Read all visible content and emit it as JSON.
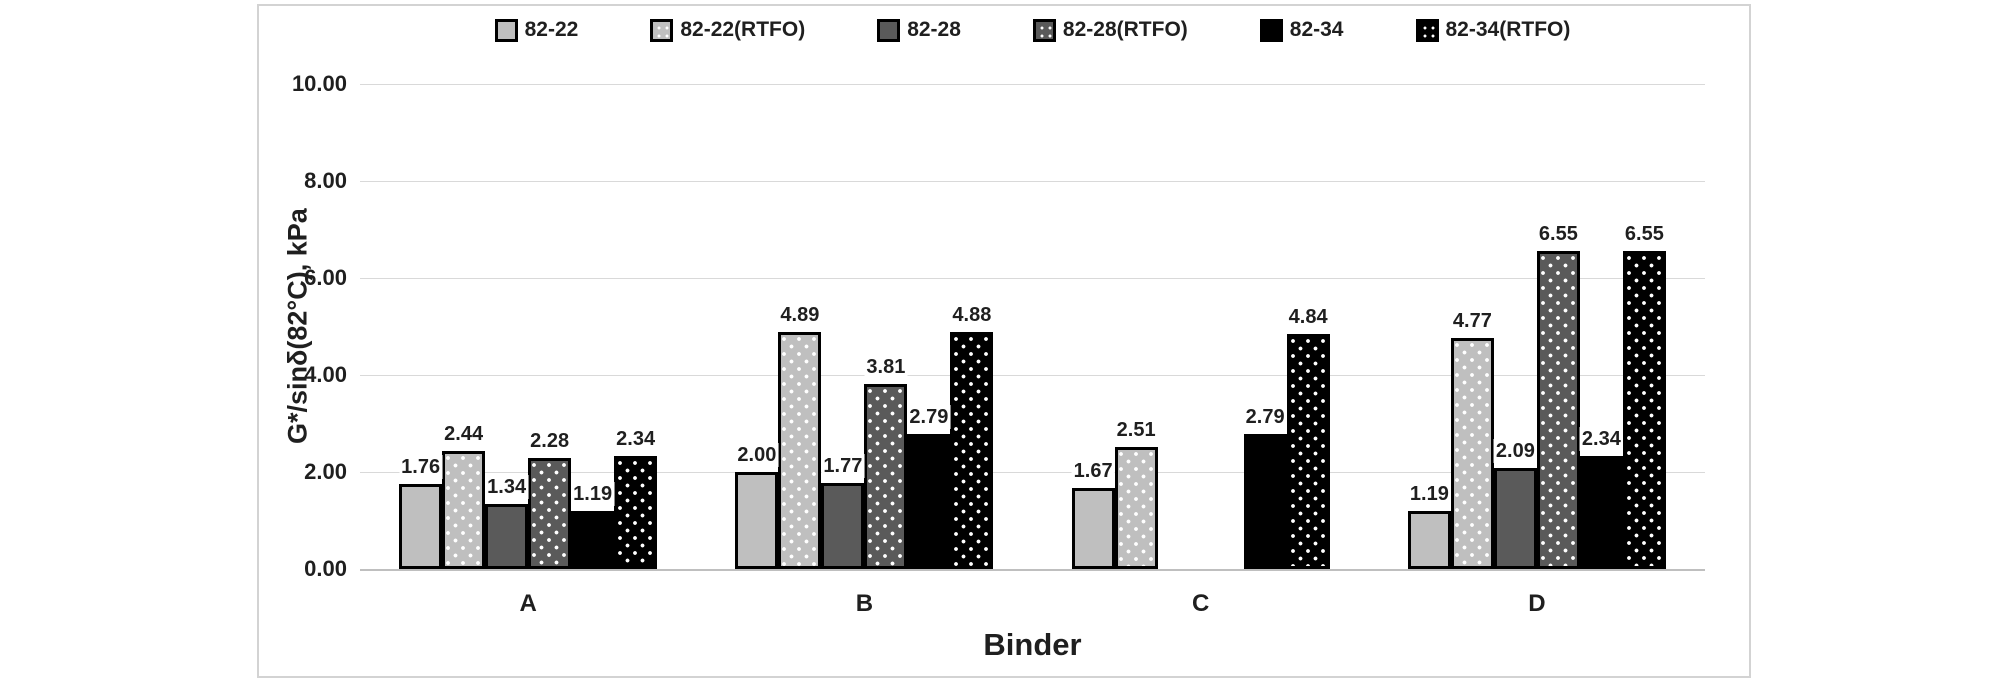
{
  "chart_data": {
    "type": "bar",
    "title": "",
    "categories": [
      "A",
      "B",
      "C",
      "D"
    ],
    "series": [
      {
        "name": "82-22",
        "fill": "#bfbfbf",
        "pattern": "solid",
        "values": [
          1.76,
          2.0,
          1.67,
          1.19
        ]
      },
      {
        "name": "82-22(RTFO)",
        "fill": "#bfbfbf",
        "pattern": "white-dots",
        "values": [
          2.44,
          4.89,
          2.51,
          4.77
        ]
      },
      {
        "name": "82-28",
        "fill": "#5a5a5a",
        "pattern": "solid",
        "values": [
          1.34,
          1.77,
          null,
          2.09
        ]
      },
      {
        "name": "82-28(RTFO)",
        "fill": "#5a5a5a",
        "pattern": "white-dots",
        "values": [
          2.28,
          3.81,
          null,
          6.55
        ]
      },
      {
        "name": "82-34",
        "fill": "#000000",
        "pattern": "solid",
        "values": [
          1.19,
          2.79,
          2.79,
          2.34
        ]
      },
      {
        "name": "82-34(RTFO)",
        "fill": "#000000",
        "pattern": "white-dots",
        "values": [
          2.34,
          4.88,
          4.84,
          6.55
        ]
      }
    ],
    "xlabel": "Binder",
    "ylabel": "G*/sinδ(82°C), kPa",
    "ylim": [
      0,
      10
    ],
    "ytick_step": 2,
    "ytick_labels": [
      "0.00",
      "2.00",
      "4.00",
      "6.00",
      "8.00",
      "10.00"
    ],
    "grid": "horizontal",
    "legend_position": "top",
    "data_label_decimals": 2,
    "bar_border_color": "#000000"
  },
  "style": {
    "gridline_color": "#d9d9d9",
    "axis_line_color": "#bfbfbf",
    "frame_border_color": "#d3d3d3",
    "text_color": "#1f1f1f",
    "background": "#ffffff"
  }
}
